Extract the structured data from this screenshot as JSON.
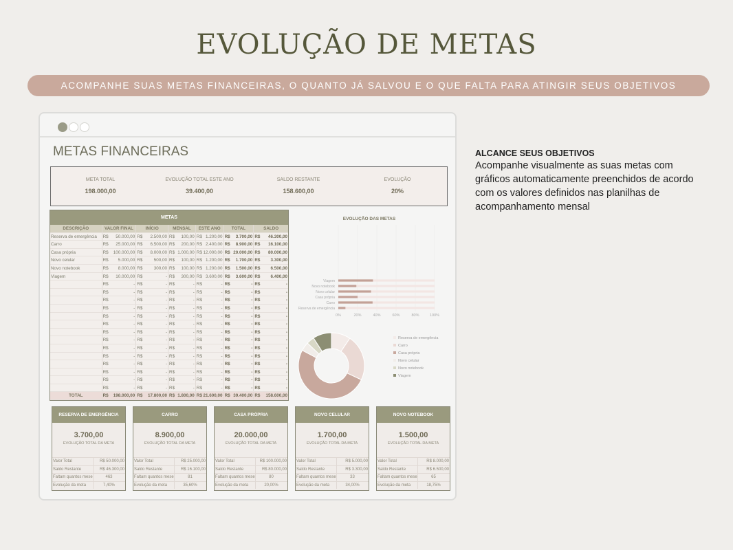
{
  "title": "EVOLUÇÃO DE METAS",
  "banner": "ACOMPANHE SUAS METAS FINANCEIRAS, O QUANTO JÁ SALVOU E O QUE FALTA PARA ATINGIR SEUS OBJETIVOS",
  "sheet_title": "METAS FINANCEIRAS",
  "summary": [
    {
      "label": "META TOTAL",
      "value": "198.000,00"
    },
    {
      "label": "EVOLUÇÃO TOTAL ESTE ANO",
      "value": "39.400,00"
    },
    {
      "label": "SALDO RESTANTE",
      "value": "158.600,00"
    },
    {
      "label": "EVOLUÇÃO",
      "value": "20%"
    }
  ],
  "table": {
    "title": "METAS",
    "currency": "R$",
    "headers": [
      "DESCRIÇÃO",
      "VALOR FINAL",
      "INÍCIO",
      "MENSAL",
      "ESTE ANO",
      "TOTAL",
      "SALDO"
    ],
    "rows": [
      [
        "Reserva de emergência",
        "50.000,00",
        "2.500,00",
        "100,00",
        "1.200,00",
        "3.700,00",
        "46.300,00"
      ],
      [
        "Carro",
        "25.000,00",
        "6.500,00",
        "200,00",
        "2.400,00",
        "8.900,00",
        "16.100,00"
      ],
      [
        "Casa própria",
        "100.000,00",
        "8.000,00",
        "1.000,00",
        "12.000,00",
        "20.000,00",
        "80.000,00"
      ],
      [
        "Novo celular",
        "5.000,00",
        "500,00",
        "100,00",
        "1.200,00",
        "1.700,00",
        "3.300,00"
      ],
      [
        "Novo notebook",
        "8.000,00",
        "300,00",
        "100,00",
        "1.200,00",
        "1.500,00",
        "6.500,00"
      ],
      [
        "Viagem",
        "10.000,00",
        "-",
        "300,00",
        "3.600,00",
        "3.600,00",
        "6.400,00"
      ]
    ],
    "empty_rows": 14,
    "empty_value": "-",
    "total": [
      "TOTAL",
      "198.000,00",
      "17.800,00",
      "1.800,00",
      "21.600,00",
      "39.400,00",
      "158.600,00"
    ]
  },
  "chart_data": [
    {
      "type": "bar",
      "orientation": "horizontal",
      "title": "EVOLUÇÃO DAS METAS",
      "categories": [
        "Reserva de emergência",
        "Carro",
        "Casa própria",
        "Novo celular",
        "Novo notebook",
        "Viagem"
      ],
      "values": [
        7.4,
        35.6,
        20,
        34,
        18.75,
        36
      ],
      "xlim": [
        0,
        100
      ],
      "xticks": [
        "0%",
        "20%",
        "40%",
        "60%",
        "80%",
        "100%"
      ],
      "grid": true,
      "color": "#c3a197",
      "track_color": "#f3e6e3"
    },
    {
      "type": "pie",
      "donut": true,
      "categories": [
        "Reserva de emergência",
        "Carro",
        "Casa própria",
        "Novo celular",
        "Novo notebook",
        "Viagem"
      ],
      "values": [
        3700,
        8900,
        20000,
        1700,
        1500,
        3600
      ],
      "colors": [
        "#f3ebe8",
        "#ead9d4",
        "#c8a89d",
        "#f1ede9",
        "#d8d8c6",
        "#8c8e73"
      ],
      "legend": "right"
    }
  ],
  "cards": [
    {
      "title": "RESERVA DE EMERGÊNCIA",
      "value": "3.700,00",
      "sub": "EVOLUÇÃO TOTAL DA META",
      "rows": [
        [
          "Valor Total",
          "R$  50.000,00"
        ],
        [
          "Saldo Restante",
          "R$  46.300,00"
        ],
        [
          "Faltam quantos meses",
          "463"
        ],
        [
          "Evolução da meta",
          "7,40%"
        ]
      ]
    },
    {
      "title": "CARRO",
      "value": "8.900,00",
      "sub": "EVOLUÇÃO TOTAL DA META",
      "rows": [
        [
          "Valor Total",
          "R$  25.000,00"
        ],
        [
          "Saldo Restante",
          "R$  16.100,00"
        ],
        [
          "Faltam quantos meses",
          "81"
        ],
        [
          "Evolução da meta",
          "35,60%"
        ]
      ]
    },
    {
      "title": "CASA PRÓPRIA",
      "value": "20.000,00",
      "sub": "EVOLUÇÃO TOTAL DA META",
      "rows": [
        [
          "Valor Total",
          "R$ 100.000,00"
        ],
        [
          "Saldo Restante",
          "R$  80.000,00"
        ],
        [
          "Faltam quantos meses",
          "80"
        ],
        [
          "Evolução da meta",
          "20,00%"
        ]
      ]
    },
    {
      "title": "NOVO CELULAR",
      "value": "1.700,00",
      "sub": "EVOLUÇÃO TOTAL DA META",
      "rows": [
        [
          "Valor Total",
          "R$   5.000,00"
        ],
        [
          "Saldo Restante",
          "R$   3.300,00"
        ],
        [
          "Faltam quantos meses",
          "33"
        ],
        [
          "Evolução da meta",
          "34,00%"
        ]
      ]
    },
    {
      "title": "NOVO NOTEBOOK",
      "value": "1.500,00",
      "sub": "EVOLUÇÃO TOTAL DA META",
      "rows": [
        [
          "Valor Total",
          "R$   8.000,00"
        ],
        [
          "Saldo Restante",
          "R$   6.500,00"
        ],
        [
          "Faltam quantos meses",
          "65"
        ],
        [
          "Evolução da meta",
          "18,75%"
        ]
      ]
    }
  ],
  "side": {
    "heading": "ALCANCE SEUS OBJETIVOS",
    "text": "Acompanhe visualmente as suas metas com gráficos automaticamente preenchidos de acordo com os valores definidos nas planilhas de acompanhamento mensal"
  }
}
